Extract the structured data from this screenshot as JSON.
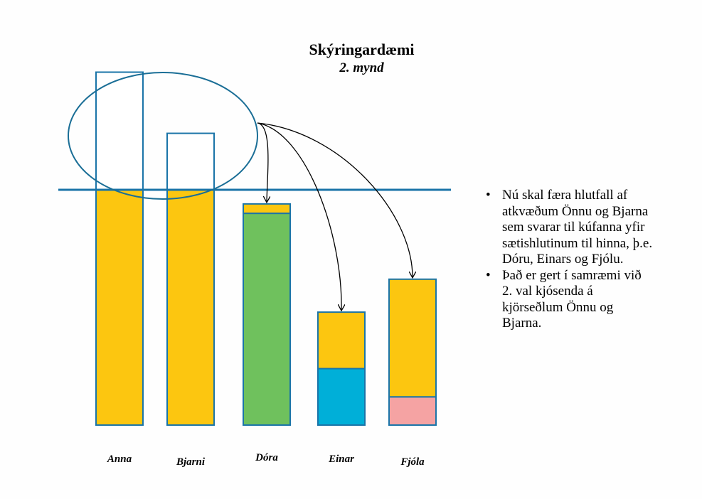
{
  "title": "Skýringardæmi",
  "subtitle": "2. mynd",
  "notes": [
    "Nú skal færa hlutfall af atkvæðum Önnu og Bjarna sem svarar til kúfanna yfir sætishlutinum til hinna, þ.e. Dóru, Einars og Fjólu.",
    "Það er gert í samræmi við 2. val kjósenda á kjörseðlum Önnu og Bjarna."
  ],
  "bullet": "•",
  "colors": {
    "yellow": "#fcc610",
    "green": "#6fc15d",
    "blue": "#00afd8",
    "pink": "#f5a3a3",
    "line": "#1a74a8",
    "ellipse": "#1a6e96"
  },
  "chart_data": {
    "type": "bar",
    "categories": [
      "Anna",
      "Bjarni",
      "Dóra",
      "Einar",
      "Fjóla"
    ],
    "seat_threshold": 100,
    "series": [
      {
        "base_color": "green",
        "values": [
          0,
          0,
          90,
          0,
          0
        ]
      },
      {
        "base_color": "blue",
        "values": [
          0,
          0,
          0,
          24,
          0
        ]
      },
      {
        "base_color": "pink",
        "values": [
          0,
          0,
          0,
          0,
          12
        ]
      },
      {
        "base_color": "yellow",
        "values": [
          100,
          100,
          4,
          24,
          50
        ]
      },
      {
        "base_color": "none",
        "values": [
          50,
          24,
          0,
          0,
          0
        ]
      }
    ],
    "ylim": [
      0,
      150
    ],
    "transfers_from": [
      "Anna",
      "Bjarni"
    ],
    "transfers_to": [
      "Dóra",
      "Einar",
      "Fjóla"
    ]
  }
}
